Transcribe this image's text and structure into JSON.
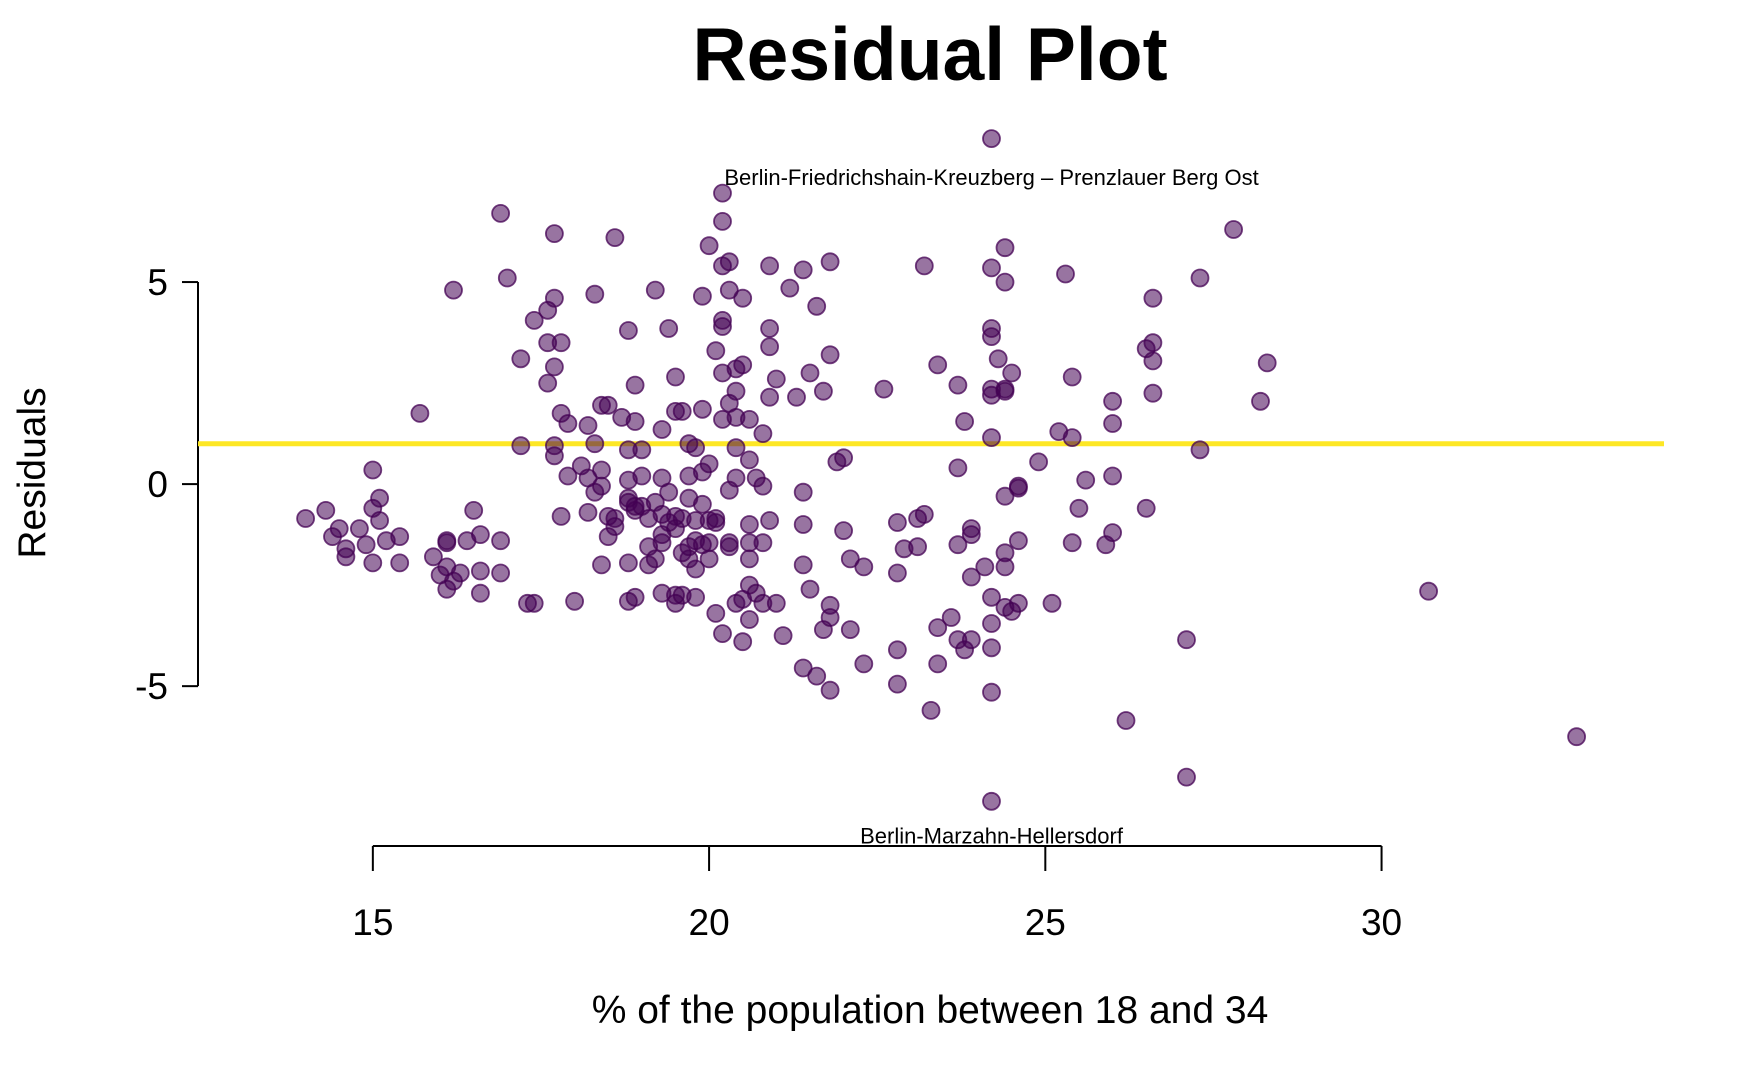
{
  "chart_data": {
    "type": "scatter",
    "title": "Residual Plot",
    "xlabel": "% of the population between 18 and 34",
    "ylabel": "Residuals",
    "xlim": [
      12.4,
      34.2
    ],
    "ylim": [
      -9.5,
      10.0
    ],
    "x_axis_range": [
      15,
      30
    ],
    "y_axis_range": [
      -5,
      5
    ],
    "x_ticks": [
      15,
      20,
      25,
      30
    ],
    "y_ticks": [
      -5,
      0,
      5
    ],
    "x_tick_labels": [
      "15",
      "20",
      "25",
      "30"
    ],
    "y_tick_labels": [
      "-5",
      "0",
      "5"
    ],
    "grid": false,
    "point_color": "#440154",
    "point_opacity": 0.55,
    "reference_line": {
      "y": 1.0,
      "color": "#FDE725"
    },
    "annotations": [
      {
        "text": "Berlin-Friedrichshain-Kreuzberg – Prenzlauer Berg Ost",
        "x": 24.2,
        "y": 7.6
      },
      {
        "text": "Berlin-Marzahn-Hellersdorf",
        "x": 24.2,
        "y": -8.7
      }
    ],
    "series": [
      {
        "points": [
          [
            14.0,
            -0.85
          ],
          [
            14.3,
            -0.65
          ],
          [
            14.4,
            -1.3
          ],
          [
            14.5,
            -1.1
          ],
          [
            14.6,
            -1.6
          ],
          [
            14.6,
            -1.8
          ],
          [
            14.8,
            -1.1
          ],
          [
            14.9,
            -1.5
          ],
          [
            15.0,
            -0.6
          ],
          [
            15.0,
            -1.95
          ],
          [
            15.0,
            0.35
          ],
          [
            15.1,
            -0.9
          ],
          [
            15.1,
            -0.35
          ],
          [
            15.2,
            -1.4
          ],
          [
            15.4,
            -1.3
          ],
          [
            15.4,
            -1.95
          ],
          [
            15.7,
            1.75
          ],
          [
            15.9,
            -1.8
          ],
          [
            16.0,
            -2.25
          ],
          [
            16.1,
            -1.4
          ],
          [
            16.1,
            -1.45
          ],
          [
            16.1,
            -2.05
          ],
          [
            16.1,
            -2.6
          ],
          [
            16.2,
            -2.4
          ],
          [
            16.2,
            4.8
          ],
          [
            16.3,
            -2.2
          ],
          [
            16.4,
            -1.4
          ],
          [
            16.5,
            -0.65
          ],
          [
            16.6,
            -1.25
          ],
          [
            16.6,
            -2.15
          ],
          [
            16.6,
            -2.7
          ],
          [
            16.9,
            -1.4
          ],
          [
            16.9,
            -2.2
          ],
          [
            16.9,
            6.7
          ],
          [
            17.0,
            5.1
          ],
          [
            17.2,
            3.1
          ],
          [
            17.2,
            0.95
          ],
          [
            17.3,
            -2.95
          ],
          [
            17.4,
            -2.95
          ],
          [
            17.4,
            4.05
          ],
          [
            17.6,
            4.3
          ],
          [
            17.6,
            3.5
          ],
          [
            17.6,
            2.5
          ],
          [
            17.7,
            0.95
          ],
          [
            17.7,
            0.7
          ],
          [
            17.7,
            6.2
          ],
          [
            17.7,
            4.6
          ],
          [
            17.7,
            2.9
          ],
          [
            17.8,
            1.75
          ],
          [
            17.8,
            -0.8
          ],
          [
            17.8,
            3.5
          ],
          [
            17.9,
            1.5
          ],
          [
            17.9,
            0.2
          ],
          [
            18.0,
            -2.9
          ],
          [
            18.1,
            0.45
          ],
          [
            18.2,
            1.45
          ],
          [
            18.2,
            0.15
          ],
          [
            18.2,
            -0.7
          ],
          [
            18.3,
            4.7
          ],
          [
            18.3,
            1.0
          ],
          [
            18.3,
            -0.2
          ],
          [
            18.4,
            1.95
          ],
          [
            18.4,
            0.35
          ],
          [
            18.4,
            -0.05
          ],
          [
            18.4,
            -2.0
          ],
          [
            18.5,
            -0.8
          ],
          [
            18.5,
            -1.3
          ],
          [
            18.5,
            1.95
          ],
          [
            18.6,
            6.1
          ],
          [
            18.6,
            -0.85
          ],
          [
            18.6,
            -1.05
          ],
          [
            18.7,
            1.65
          ],
          [
            18.8,
            3.8
          ],
          [
            18.8,
            0.85
          ],
          [
            18.8,
            0.1
          ],
          [
            18.8,
            -0.35
          ],
          [
            18.8,
            -0.45
          ],
          [
            18.8,
            -1.95
          ],
          [
            18.8,
            -2.9
          ],
          [
            18.9,
            2.45
          ],
          [
            18.9,
            1.55
          ],
          [
            18.9,
            -0.55
          ],
          [
            18.9,
            -0.65
          ],
          [
            18.9,
            -2.8
          ],
          [
            19.0,
            0.85
          ],
          [
            19.0,
            0.2
          ],
          [
            19.0,
            -0.55
          ],
          [
            19.1,
            -0.85
          ],
          [
            19.1,
            -1.55
          ],
          [
            19.1,
            -2.0
          ],
          [
            19.2,
            4.8
          ],
          [
            19.2,
            -0.45
          ],
          [
            19.2,
            -1.85
          ],
          [
            19.3,
            1.35
          ],
          [
            19.3,
            0.15
          ],
          [
            19.3,
            -0.75
          ],
          [
            19.3,
            -1.25
          ],
          [
            19.3,
            -1.45
          ],
          [
            19.3,
            -2.7
          ],
          [
            19.4,
            3.85
          ],
          [
            19.4,
            -0.2
          ],
          [
            19.4,
            -0.95
          ],
          [
            19.5,
            2.65
          ],
          [
            19.5,
            1.8
          ],
          [
            19.5,
            -0.8
          ],
          [
            19.5,
            -1.1
          ],
          [
            19.5,
            -2.75
          ],
          [
            19.5,
            -2.95
          ],
          [
            19.6,
            1.8
          ],
          [
            19.6,
            -0.85
          ],
          [
            19.6,
            -1.7
          ],
          [
            19.6,
            -2.75
          ],
          [
            19.7,
            1.0
          ],
          [
            19.7,
            0.2
          ],
          [
            19.7,
            -0.35
          ],
          [
            19.7,
            -1.55
          ],
          [
            19.7,
            -1.85
          ],
          [
            19.8,
            0.9
          ],
          [
            19.8,
            -0.9
          ],
          [
            19.8,
            -1.4
          ],
          [
            19.8,
            -2.1
          ],
          [
            19.8,
            -2.8
          ],
          [
            19.9,
            4.65
          ],
          [
            19.9,
            1.85
          ],
          [
            19.9,
            0.3
          ],
          [
            19.9,
            -0.5
          ],
          [
            19.9,
            -1.5
          ],
          [
            20.0,
            5.9
          ],
          [
            20.0,
            0.5
          ],
          [
            20.0,
            -0.9
          ],
          [
            20.0,
            -1.45
          ],
          [
            20.0,
            -1.85
          ],
          [
            20.1,
            3.3
          ],
          [
            20.1,
            -0.85
          ],
          [
            20.1,
            -0.95
          ],
          [
            20.1,
            -3.2
          ],
          [
            20.2,
            7.2
          ],
          [
            20.2,
            6.5
          ],
          [
            20.2,
            5.4
          ],
          [
            20.2,
            4.05
          ],
          [
            20.2,
            3.9
          ],
          [
            20.2,
            2.75
          ],
          [
            20.2,
            1.6
          ],
          [
            20.2,
            -3.7
          ],
          [
            20.3,
            5.5
          ],
          [
            20.3,
            4.8
          ],
          [
            20.3,
            2.0
          ],
          [
            20.3,
            -0.15
          ],
          [
            20.3,
            -1.45
          ],
          [
            20.3,
            -1.55
          ],
          [
            20.4,
            2.85
          ],
          [
            20.4,
            2.3
          ],
          [
            20.4,
            1.65
          ],
          [
            20.4,
            0.9
          ],
          [
            20.4,
            0.15
          ],
          [
            20.4,
            -2.95
          ],
          [
            20.5,
            4.6
          ],
          [
            20.5,
            2.95
          ],
          [
            20.5,
            -2.85
          ],
          [
            20.5,
            -3.9
          ],
          [
            20.6,
            1.6
          ],
          [
            20.6,
            0.6
          ],
          [
            20.6,
            -1.0
          ],
          [
            20.6,
            -1.45
          ],
          [
            20.6,
            -1.85
          ],
          [
            20.6,
            -2.5
          ],
          [
            20.6,
            -3.35
          ],
          [
            20.7,
            0.15
          ],
          [
            20.7,
            -2.7
          ],
          [
            20.8,
            1.25
          ],
          [
            20.8,
            -0.05
          ],
          [
            20.8,
            -1.45
          ],
          [
            20.8,
            -2.95
          ],
          [
            20.9,
            5.4
          ],
          [
            20.9,
            3.85
          ],
          [
            20.9,
            3.4
          ],
          [
            20.9,
            2.15
          ],
          [
            20.9,
            -0.9
          ],
          [
            21.0,
            2.6
          ],
          [
            21.0,
            -2.95
          ],
          [
            21.1,
            -3.75
          ],
          [
            21.2,
            4.85
          ],
          [
            21.3,
            2.15
          ],
          [
            21.4,
            5.3
          ],
          [
            21.4,
            -0.2
          ],
          [
            21.4,
            -1.0
          ],
          [
            21.4,
            -2.0
          ],
          [
            21.4,
            -4.55
          ],
          [
            21.5,
            2.75
          ],
          [
            21.5,
            -2.6
          ],
          [
            21.6,
            4.4
          ],
          [
            21.6,
            -4.75
          ],
          [
            21.7,
            2.3
          ],
          [
            21.7,
            -3.6
          ],
          [
            21.8,
            5.5
          ],
          [
            21.8,
            3.2
          ],
          [
            21.8,
            -3.0
          ],
          [
            21.8,
            -3.3
          ],
          [
            21.8,
            -5.1
          ],
          [
            21.9,
            0.55
          ],
          [
            22.0,
            0.65
          ],
          [
            22.0,
            -1.15
          ],
          [
            22.1,
            -1.85
          ],
          [
            22.1,
            -3.6
          ],
          [
            22.3,
            -2.05
          ],
          [
            22.3,
            -4.45
          ],
          [
            22.6,
            2.35
          ],
          [
            22.8,
            -0.95
          ],
          [
            22.8,
            -2.2
          ],
          [
            22.8,
            -4.1
          ],
          [
            22.8,
            -4.95
          ],
          [
            22.9,
            -1.6
          ],
          [
            23.1,
            -0.85
          ],
          [
            23.1,
            -1.55
          ],
          [
            23.2,
            5.4
          ],
          [
            23.2,
            -0.75
          ],
          [
            23.3,
            -5.6
          ],
          [
            23.4,
            2.95
          ],
          [
            23.4,
            -3.55
          ],
          [
            23.4,
            -4.45
          ],
          [
            23.6,
            -3.3
          ],
          [
            23.7,
            2.45
          ],
          [
            23.7,
            0.4
          ],
          [
            23.7,
            -1.5
          ],
          [
            23.7,
            -3.85
          ],
          [
            23.8,
            1.55
          ],
          [
            23.8,
            -4.1
          ],
          [
            23.9,
            -1.1
          ],
          [
            23.9,
            -1.25
          ],
          [
            23.9,
            -2.3
          ],
          [
            23.9,
            -3.85
          ],
          [
            24.1,
            -2.05
          ],
          [
            24.4,
            -0.3
          ],
          [
            24.5,
            2.75
          ],
          [
            24.6,
            -0.05
          ],
          [
            24.6,
            -1.4
          ],
          [
            24.2,
            -7.85
          ],
          [
            24.2,
            8.55
          ],
          [
            24.2,
            5.35
          ],
          [
            24.2,
            3.85
          ],
          [
            24.2,
            3.65
          ],
          [
            24.2,
            2.35
          ],
          [
            24.2,
            2.2
          ],
          [
            24.2,
            1.15
          ],
          [
            24.2,
            -2.8
          ],
          [
            24.2,
            -3.45
          ],
          [
            24.2,
            -4.05
          ],
          [
            24.2,
            -5.15
          ],
          [
            24.3,
            3.1
          ],
          [
            24.4,
            2.35
          ],
          [
            24.4,
            2.3
          ],
          [
            24.4,
            -3.05
          ],
          [
            24.4,
            5.0
          ],
          [
            24.4,
            5.85
          ],
          [
            24.4,
            -1.7
          ],
          [
            24.4,
            -2.05
          ],
          [
            24.5,
            -3.15
          ],
          [
            24.6,
            -0.1
          ],
          [
            24.6,
            -2.95
          ],
          [
            24.9,
            0.55
          ],
          [
            25.1,
            -2.95
          ],
          [
            25.2,
            1.3
          ],
          [
            25.3,
            5.2
          ],
          [
            25.4,
            2.65
          ],
          [
            25.4,
            1.15
          ],
          [
            25.4,
            -1.45
          ],
          [
            25.5,
            -0.6
          ],
          [
            25.6,
            0.1
          ],
          [
            25.9,
            -1.5
          ],
          [
            26.0,
            2.05
          ],
          [
            26.0,
            1.5
          ],
          [
            26.0,
            0.2
          ],
          [
            26.0,
            -1.2
          ],
          [
            26.2,
            -5.85
          ],
          [
            26.5,
            3.35
          ],
          [
            26.5,
            -0.6
          ],
          [
            26.6,
            4.6
          ],
          [
            26.6,
            3.5
          ],
          [
            26.6,
            3.05
          ],
          [
            26.6,
            2.25
          ],
          [
            27.1,
            -3.85
          ],
          [
            27.1,
            -7.25
          ],
          [
            27.3,
            5.1
          ],
          [
            27.3,
            0.85
          ],
          [
            27.8,
            6.3
          ],
          [
            28.2,
            2.05
          ],
          [
            28.3,
            3.0
          ],
          [
            30.7,
            -2.65
          ],
          [
            32.9,
            -6.25
          ]
        ]
      }
    ]
  }
}
